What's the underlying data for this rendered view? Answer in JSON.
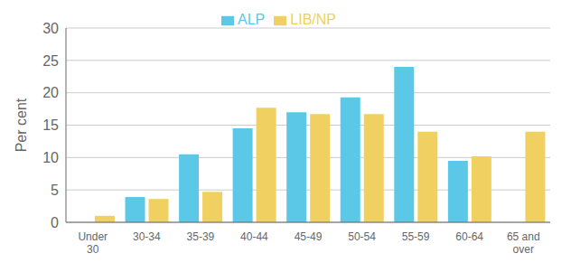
{
  "chart_data": {
    "type": "bar",
    "categories": [
      "Under\n30",
      "30-34",
      "35-39",
      "40-44",
      "45-49",
      "50-54",
      "55-59",
      "60-64",
      "65 and\nover"
    ],
    "series": [
      {
        "name": "ALP",
        "color": "#5BC8E8",
        "values": [
          0,
          3.9,
          10.5,
          14.5,
          17.0,
          19.3,
          24.0,
          9.5,
          0
        ]
      },
      {
        "name": "LIB/NP",
        "color": "#F0D060",
        "values": [
          1.0,
          3.6,
          4.7,
          17.7,
          16.7,
          16.7,
          14.0,
          10.2,
          14.0
        ]
      }
    ],
    "ylabel": "Per cent",
    "ylim": [
      0,
      30
    ],
    "yticks": [
      0,
      5,
      10,
      15,
      20,
      25,
      30
    ],
    "grid": true,
    "legend": "top"
  }
}
